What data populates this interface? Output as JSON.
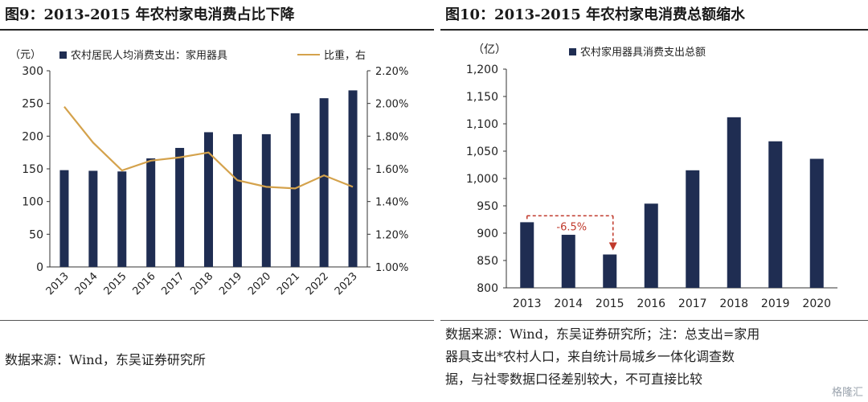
{
  "left": {
    "title": "图9：2013-2015 年农村家电消费占比下降",
    "source": "数据来源：Wind，东吴证券研究所"
  },
  "right": {
    "title": "图10：2013-2015 年农村家电消费总额缩水",
    "source_lines": [
      "数据来源：Wind，东吴证券研究所；注：总支出=家用",
      "器具支出*农村人口，来自统计局城乡一体化调查数",
      "据，与社零数据口径差别较大，不可直接比较"
    ]
  },
  "watermark": "格隆汇",
  "chart_data": [
    {
      "type": "bar",
      "x": [
        "2013",
        "2014",
        "2015",
        "2016",
        "2017",
        "2018",
        "2019",
        "2020",
        "2021",
        "2022",
        "2023"
      ],
      "series": [
        {
          "name": "农村居民人均消费支出：家用器具",
          "type": "bar",
          "axis": "left",
          "values": [
            148,
            147,
            146,
            166,
            182,
            206,
            203,
            203,
            235,
            258,
            270
          ],
          "color": "#1f2d52"
        },
        {
          "name": "比重，右",
          "type": "line",
          "axis": "right",
          "values": [
            0.0198,
            0.0176,
            0.0159,
            0.0165,
            0.0167,
            0.017,
            0.0153,
            0.0149,
            0.0148,
            0.0156,
            0.0149
          ],
          "color": "#d4a24c"
        }
      ],
      "ylabel": "（元）",
      "ylim": [
        0,
        300
      ],
      "yticks": [
        "0",
        "50",
        "100",
        "150",
        "200",
        "250",
        "300"
      ],
      "y2lim": [
        0.01,
        0.022
      ],
      "y2ticks": [
        "1.00%",
        "1.20%",
        "1.40%",
        "1.60%",
        "1.80%",
        "2.00%",
        "2.20%"
      ],
      "legend": "top",
      "grid": false
    },
    {
      "type": "bar",
      "x": [
        "2013",
        "2014",
        "2015",
        "2016",
        "2017",
        "2018",
        "2019",
        "2020"
      ],
      "series": [
        {
          "name": "农村家用器具消费支出总额",
          "values": [
            920,
            897,
            861,
            954,
            1015,
            1112,
            1068,
            1036
          ],
          "color": "#1f2d52"
        }
      ],
      "ylabel": "（亿）",
      "ylim": [
        800,
        1200
      ],
      "yticks": [
        "800",
        "850",
        "900",
        "950",
        "1,000",
        "1,050",
        "1,100",
        "1,150",
        "1,200"
      ],
      "annotation": {
        "text": "-6.5%",
        "color": "#c0392b"
      },
      "legend": "top",
      "grid": false
    }
  ]
}
